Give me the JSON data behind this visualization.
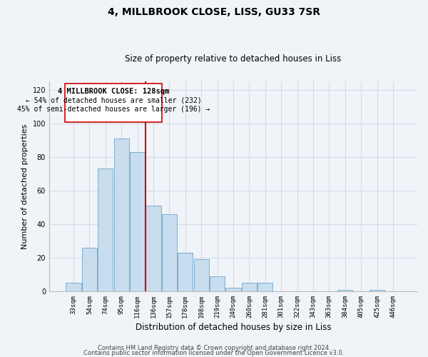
{
  "title": "4, MILLBROOK CLOSE, LISS, GU33 7SR",
  "subtitle": "Size of property relative to detached houses in Liss",
  "xlabel": "Distribution of detached houses by size in Liss",
  "ylabel": "Number of detached properties",
  "bar_labels": [
    "33sqm",
    "54sqm",
    "74sqm",
    "95sqm",
    "116sqm",
    "136sqm",
    "157sqm",
    "178sqm",
    "198sqm",
    "219sqm",
    "240sqm",
    "260sqm",
    "281sqm",
    "301sqm",
    "322sqm",
    "343sqm",
    "363sqm",
    "384sqm",
    "405sqm",
    "425sqm",
    "446sqm"
  ],
  "bar_values": [
    5,
    26,
    73,
    91,
    83,
    51,
    46,
    23,
    19,
    9,
    2,
    5,
    5,
    0,
    0,
    0,
    0,
    1,
    0,
    1,
    0
  ],
  "bar_color": "#c8dded",
  "bar_edge_color": "#7aafd4",
  "vline_x": 4.5,
  "vline_color": "#cc0000",
  "ylim": [
    0,
    125
  ],
  "yticks": [
    0,
    20,
    40,
    60,
    80,
    100,
    120
  ],
  "annotation_line1": "4 MILLBROOK CLOSE: 128sqm",
  "annotation_line2": "← 54% of detached houses are smaller (232)",
  "annotation_line3": "45% of semi-detached houses are larger (196) →",
  "footer_line1": "Contains HM Land Registry data © Crown copyright and database right 2024.",
  "footer_line2": "Contains public sector information licensed under the Open Government Licence v3.0.",
  "background_color": "#f0f4f8",
  "grid_color": "#d0dce8",
  "title_fontsize": 10,
  "subtitle_fontsize": 8.5,
  "ylabel_fontsize": 8,
  "xlabel_fontsize": 8.5,
  "tick_fontsize": 6.5,
  "footer_fontsize": 6
}
